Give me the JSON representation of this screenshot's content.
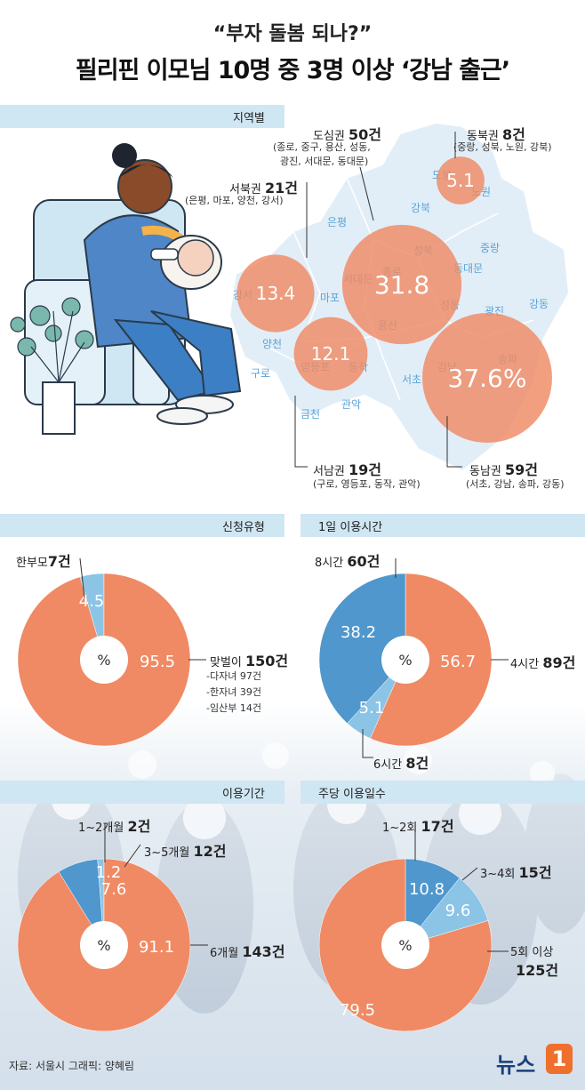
{
  "header": {
    "subtitle": "“부자 돌봄 되나?”",
    "title": "필리핀 이모님 10명 중 3명 이상 ‘강남 출근’"
  },
  "colors": {
    "orange": "#ef8a64",
    "blue": "#4f97cc",
    "lightblue": "#8cc4e6",
    "band": "#cfe6f3",
    "map": "#e2eef7"
  },
  "sections": {
    "region": "지역별",
    "applicant": "신청유형",
    "daily": "1일 이용시간",
    "period": "이용기간",
    "weekly": "주당 이용일수"
  },
  "region_labels": {
    "downtown": {
      "name": "도심권",
      "count": "50건",
      "detail1": "(종로, 중구, 용산, 성동,",
      "detail2": "광진, 서대문, 동대문)"
    },
    "northeast": {
      "name": "동북권",
      "count": "8건",
      "detail": "(중랑, 성북, 노원, 강북)"
    },
    "northwest": {
      "name": "서북권",
      "count": "21건",
      "detail": "(은평, 마포, 양천, 강서)"
    },
    "southwest": {
      "name": "서남권",
      "count": "19건",
      "detail": "(구로, 영등포, 동작, 관악)"
    },
    "southeast": {
      "name": "동남권",
      "count": "59건",
      "detail": "(서초, 강남, 송파, 강동)"
    }
  },
  "districts": [
    "도봉",
    "노원",
    "강북",
    "은평",
    "성북",
    "중랑",
    "종로",
    "동대문",
    "서대문",
    "마포",
    "광진",
    "강동",
    "강서",
    "성동",
    "용산",
    "영등포",
    "양천",
    "동작",
    "송파",
    "구로",
    "강남",
    "서초",
    "금천",
    "관악"
  ],
  "applicant_labels": {
    "single_parent": {
      "name": "한부모",
      "count": "7건"
    },
    "dual_income": {
      "name": "맞벌이",
      "count": "150건"
    },
    "notes": [
      "-다자녀 97건",
      "-한자녀 39건",
      "-임산부 14건"
    ]
  },
  "daily_labels": {
    "h8": {
      "name": "8시간",
      "count": "60건"
    },
    "h4": {
      "name": "4시간",
      "count": "89건"
    },
    "h6": {
      "name": "6시간",
      "count": "8건"
    }
  },
  "period_labels": {
    "m1_2": {
      "name": "1~2개월",
      "count": "2건"
    },
    "m3_5": {
      "name": "3~5개월",
      "count": "12건"
    },
    "m6": {
      "name": "6개월",
      "count": "143건"
    }
  },
  "weekly_labels": {
    "d1_2": {
      "name": "1~2회",
      "count": "17건"
    },
    "d3_4": {
      "name": "3~4회",
      "count": "15건"
    },
    "d5a": "5회 이상",
    "d5b": "125건"
  },
  "pct_symbol": "%",
  "chart_data": [
    {
      "type": "bubble",
      "title": "지역별",
      "unit": "%",
      "categories": [
        "동남권",
        "도심권",
        "서북권",
        "서남권",
        "동북권"
      ],
      "values": [
        37.6,
        31.8,
        13.4,
        12.1,
        5.1
      ],
      "labels": [
        "37.6%",
        "31.8",
        "13.4",
        "12.1",
        "5.1"
      ]
    },
    {
      "type": "pie",
      "title": "신청유형",
      "categories": [
        "한부모",
        "맞벌이"
      ],
      "values": [
        4.5,
        95.5
      ],
      "labels": [
        "4.5",
        "95.5"
      ]
    },
    {
      "type": "pie",
      "title": "1일 이용시간",
      "categories": [
        "4시간",
        "6시간",
        "8시간"
      ],
      "values": [
        56.7,
        5.1,
        38.2
      ],
      "labels": [
        "56.7",
        "5.1",
        "38.2"
      ]
    },
    {
      "type": "pie",
      "title": "이용기간",
      "categories": [
        "1~2개월",
        "3~5개월",
        "6개월"
      ],
      "values": [
        1.2,
        7.6,
        91.1
      ],
      "labels": [
        "1.2",
        "7.6",
        "91.1"
      ]
    },
    {
      "type": "pie",
      "title": "주당 이용일수",
      "categories": [
        "1~2회",
        "3~4회",
        "5회 이상"
      ],
      "values": [
        10.8,
        9.6,
        79.5
      ],
      "labels": [
        "10.8",
        "9.6",
        "79.5"
      ]
    }
  ],
  "footer": {
    "source": "자료: 서울시   그래픽: 양혜림",
    "logo_text": "뉴스",
    "logo_mark": "1"
  }
}
